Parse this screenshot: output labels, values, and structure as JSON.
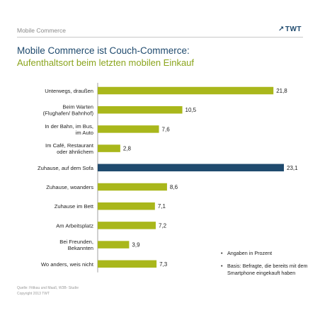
{
  "header": {
    "section_label": "Mobile Commerce",
    "logo_text": "TWT",
    "title": "Mobile Commerce ist Couch-Commerce:",
    "subtitle": "Aufenthaltsort beim letzten mobilen Einkauf"
  },
  "colors": {
    "bar_default": "#a9b71b",
    "bar_highlight": "#1f4a6e",
    "title": "#1f4a6e",
    "subtitle": "#8ba51d"
  },
  "chart_data": {
    "type": "bar",
    "orientation": "horizontal",
    "categories": [
      "Unterwegs, draußen",
      "Beim Warten (Flughafen/ Bahnhof)",
      "In der Bahn, im Bus, im Auto",
      "Im Café, Restaurant oder ähnlichem",
      "Zuhause, auf dem Sofa",
      "Zuhause, woanders",
      "Zuhause im Bett",
      "Am Arbeitsplatz",
      "Bei Freunden, Bekannten",
      "Wo anders, weis nicht"
    ],
    "values": [
      21.8,
      10.5,
      7.6,
      2.8,
      23.1,
      8.6,
      7.1,
      7.2,
      3.9,
      7.3
    ],
    "value_labels": [
      "21,8",
      "10,5",
      "7,6",
      "2,8",
      "23,1",
      "8,6",
      "7,1",
      "7,2",
      "3,9",
      "7,3"
    ],
    "highlight_index": 4,
    "xlim": [
      0,
      23.1
    ],
    "grid": false,
    "title": "",
    "xlabel": "",
    "ylabel": ""
  },
  "legend": {
    "notes": [
      "Angaben in Prozent",
      "Basis: Befragte, die bereits mit dem Smartphone eingekauft haben"
    ]
  },
  "footer": {
    "source": "Quelle: Fittkau und Maaß, W3B- Studie",
    "copyright": "Copyright 2013 TWT"
  }
}
